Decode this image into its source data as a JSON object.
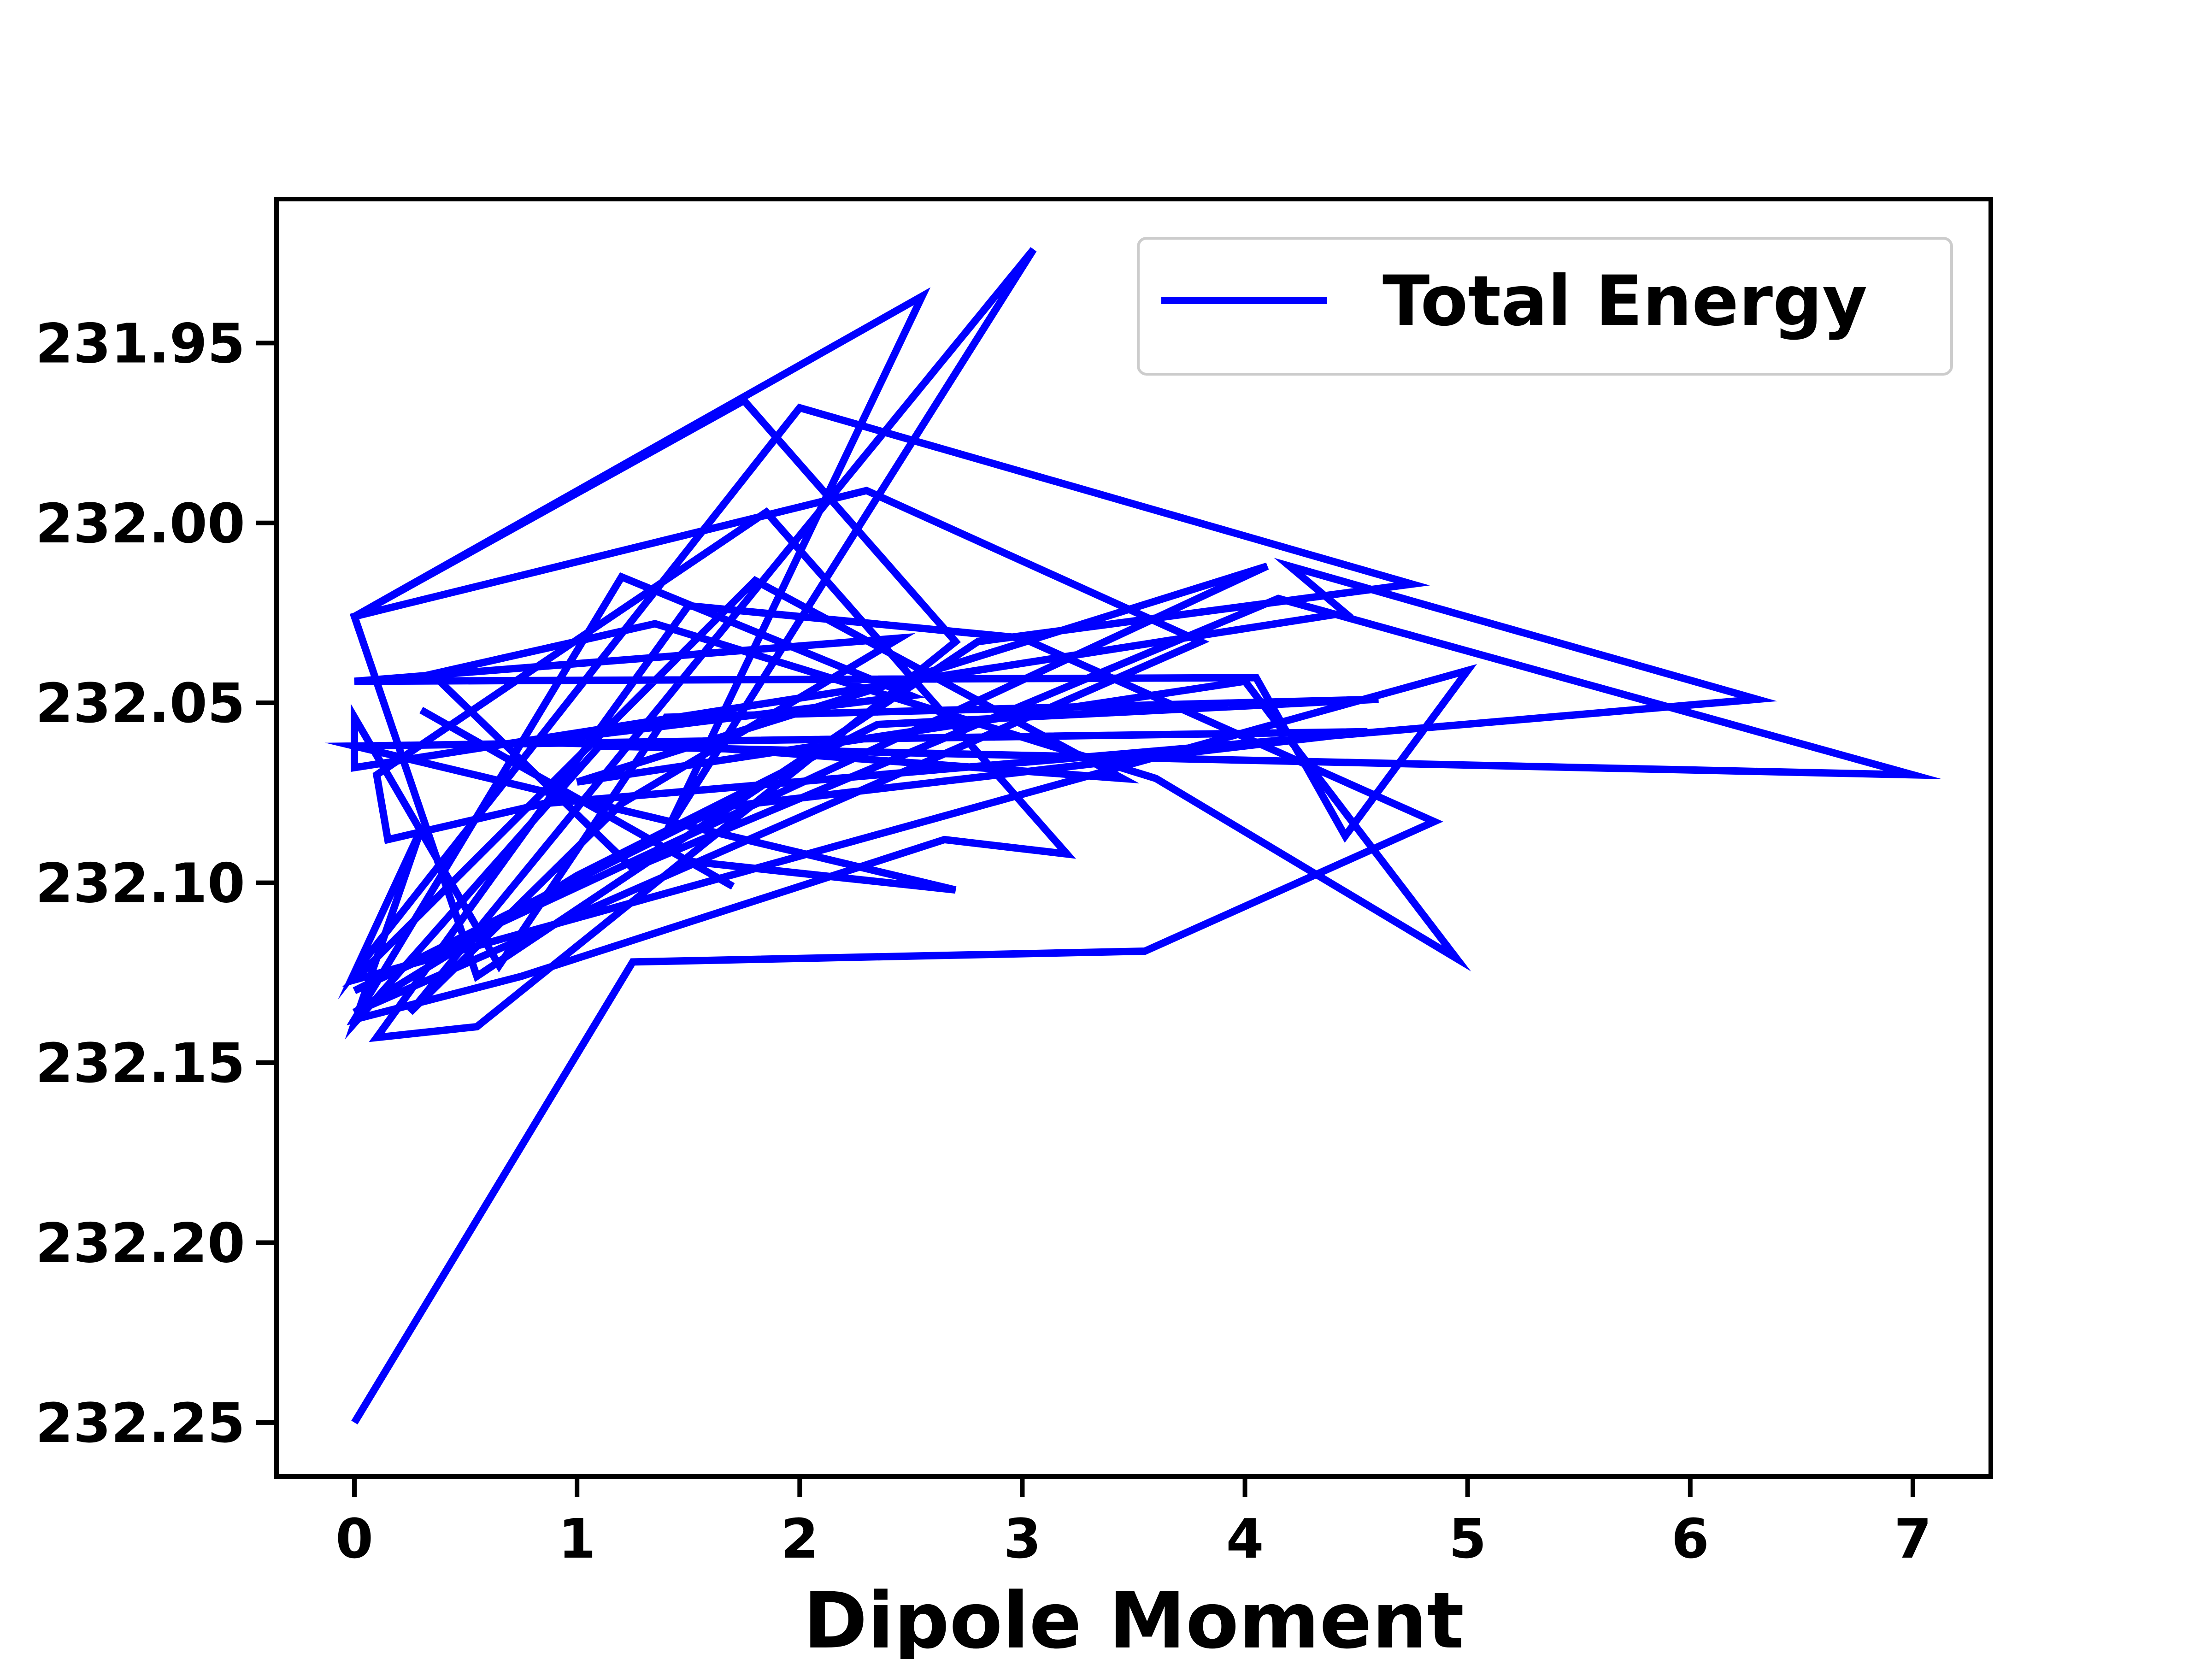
{
  "chart_data": {
    "type": "line",
    "title": "",
    "xlabel": "Dipole Moment",
    "ylabel": "",
    "xlim": [
      -0.35,
      7.35
    ],
    "ylim": [
      232.265,
      231.91
    ],
    "y_inverted": true,
    "grid": false,
    "legend_placement": "top-right",
    "xticks": [
      "0",
      "1",
      "2",
      "3",
      "4",
      "5",
      "6",
      "7"
    ],
    "yticks": [
      "231.95",
      "232.00",
      "232.05",
      "232.10",
      "232.15",
      "232.20",
      "232.25"
    ],
    "series": [
      {
        "name": "Total Energy",
        "color": "#0000ff",
        "x": [
          0.0,
          1.25,
          3.55,
          4.85,
          3.0,
          1.5,
          0.1,
          0.55,
          2.7,
          1.75,
          0.0,
          2.55,
          1.4,
          3.05,
          0.25,
          1.2,
          2.45,
          0.0,
          4.05,
          4.45,
          5.0,
          0.0,
          1.8,
          3.45,
          1.5,
          0.8,
          2.5,
          1.2,
          0.0,
          0.75,
          2.65,
          3.2,
          1.85,
          0.1,
          0.15,
          0.85,
          6.3,
          4.2,
          4.45,
          0.0,
          0.0,
          0.65,
          1.4,
          4.6,
          2.35,
          1.0,
          0.0,
          3.8,
          2.3,
          0.0,
          0.55,
          2.8,
          4.75,
          2.0,
          0.0,
          0.3,
          0.0,
          1.1,
          7.0,
          4.15,
          1.25,
          0.35,
          1.35,
          3.6,
          4.95,
          4.0,
          1.0,
          4.1,
          0.0,
          1.65,
          4.55,
          0.0,
          2.7,
          1.5,
          1.7,
          0.3
        ],
        "y": [
          232.25,
          232.122,
          232.119,
          232.083,
          232.032,
          232.023,
          232.143,
          232.14,
          232.033,
          231.966,
          232.026,
          231.937,
          232.086,
          231.924,
          232.136,
          232.078,
          232.032,
          232.044,
          232.043,
          232.087,
          232.041,
          232.127,
          232.016,
          232.071,
          232.062,
          232.061,
          232.048,
          232.015,
          232.138,
          232.126,
          232.088,
          232.092,
          231.997,
          232.07,
          232.088,
          232.078,
          232.049,
          232.012,
          232.025,
          232.068,
          232.054,
          232.123,
          232.054,
          232.049,
          232.056,
          232.098,
          232.136,
          232.033,
          231.991,
          232.026,
          232.126,
          232.033,
          232.017,
          231.968,
          232.125,
          232.085,
          232.139,
          232.062,
          232.07,
          232.021,
          232.096,
          232.042,
          232.028,
          232.071,
          232.121,
          232.044,
          232.072,
          232.012,
          232.13,
          232.079,
          232.058,
          232.062,
          232.102,
          232.094,
          232.101,
          232.052
        ]
      }
    ]
  }
}
